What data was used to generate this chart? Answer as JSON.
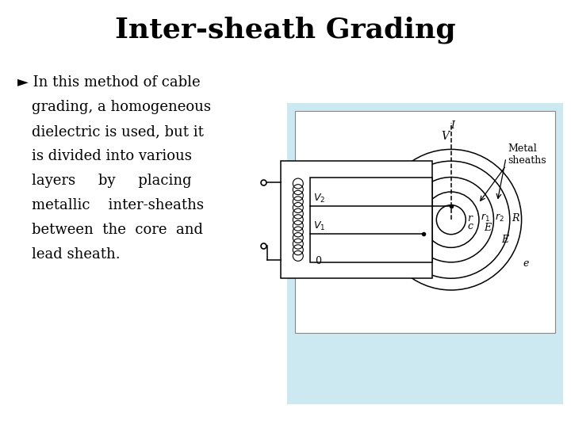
{
  "title": "Inter-sheath Grading",
  "title_fontsize": 26,
  "title_fontweight": "bold",
  "bg_color": "#ffffff",
  "panel_bg_color": "#cce8f0",
  "diagram_bg_color": "#ffffff",
  "bullet_symbol": "►",
  "bullet_lines": [
    "In this method of cable",
    "grading, a homogeneous",
    "dielectric is used, but it",
    "is divided into various",
    "layers     by     placing",
    "metallic    inter-sheaths",
    "between  the  core  and",
    "lead sheath."
  ],
  "bullet_fontsize": 13,
  "diagram": {
    "r_core": 0.1,
    "r1": 0.19,
    "r2": 0.29,
    "R": 0.4,
    "R_outer": 0.48,
    "label_r": "r",
    "label_r1": "r1",
    "label_r2": "r2",
    "label_R": "R",
    "label_c": "c",
    "label_e1": "e",
    "label_e2": "E",
    "label_e3": "e",
    "label_V": "V",
    "label_V1": "V1",
    "label_V2": "V2",
    "label_0": "0",
    "label_I": "I",
    "label_metal": "Metal\nsheaths"
  }
}
